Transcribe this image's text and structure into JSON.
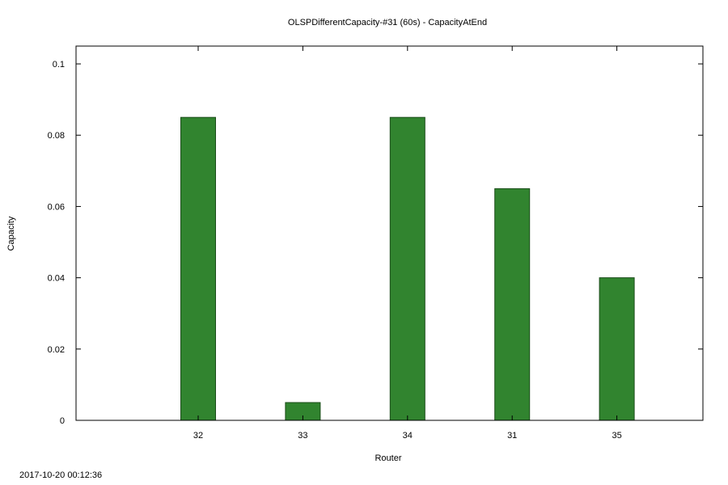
{
  "chart_data": {
    "type": "bar",
    "title": "OLSPDifferentCapacity-#31 (60s) - CapacityAtEnd",
    "xlabel": "Router",
    "ylabel": "Capacity",
    "categories": [
      "32",
      "33",
      "34",
      "31",
      "35"
    ],
    "values": [
      0.085,
      0.005,
      0.085,
      0.065,
      0.04
    ],
    "ylim": [
      0,
      0.105
    ],
    "yticks": [
      0,
      0.02,
      0.04,
      0.06,
      0.08,
      0.1
    ],
    "ytick_labels": [
      "0",
      "0.02",
      "0.04",
      "0.06",
      "0.08",
      "0.1"
    ],
    "bar_color": "#31842f",
    "grid": false,
    "legend": "none"
  },
  "footer": {
    "timestamp": "2017-10-20 00:12:36"
  }
}
